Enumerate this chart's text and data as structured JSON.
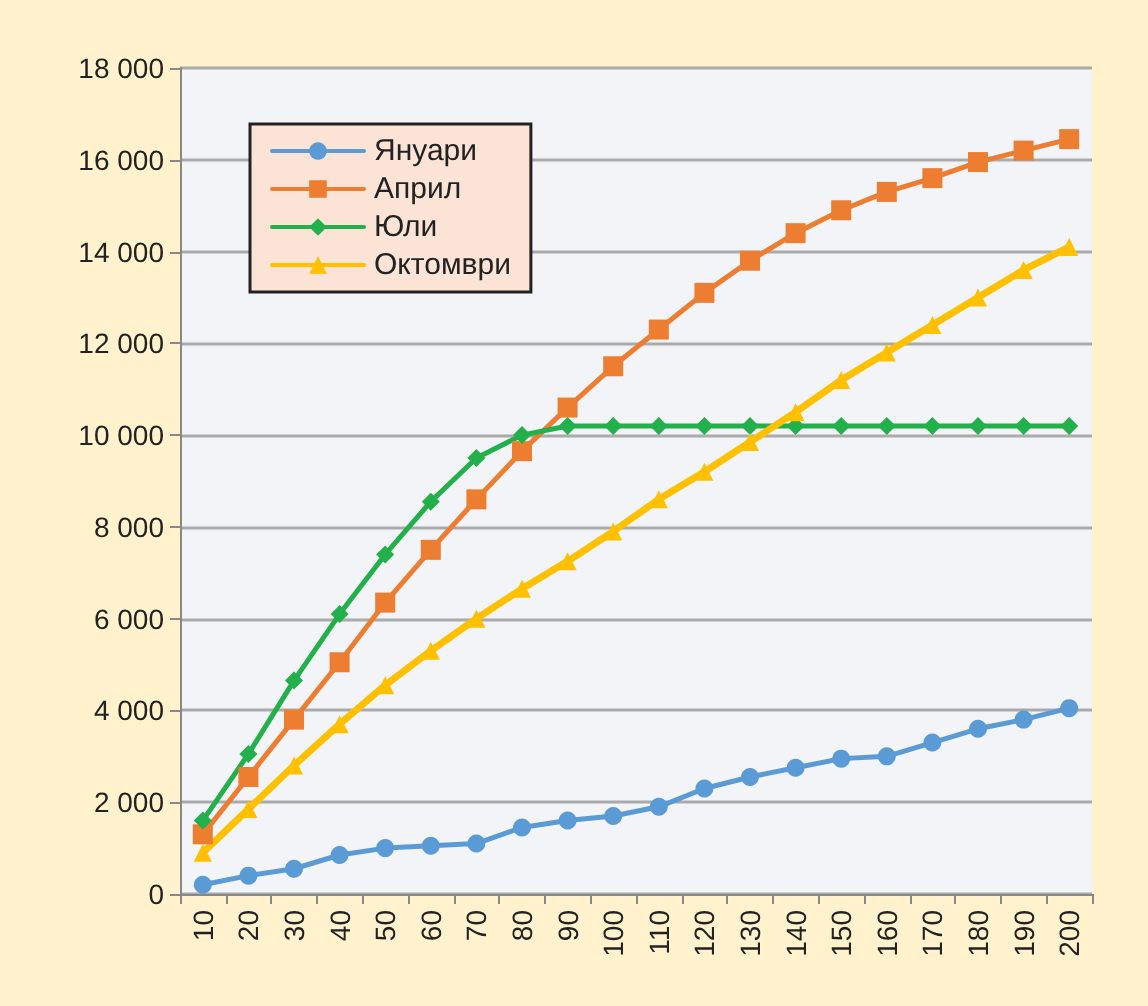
{
  "chart_data": {
    "type": "line",
    "categories": [
      "10",
      "20",
      "30",
      "40",
      "50",
      "60",
      "70",
      "80",
      "90",
      "100",
      "110",
      "120",
      "130",
      "140",
      "150",
      "160",
      "170",
      "180",
      "190",
      "200"
    ],
    "series": [
      {
        "name": "Януари",
        "color": "#5b9bd5",
        "marker": "circle",
        "values": [
          200,
          400,
          550,
          850,
          1000,
          1050,
          1100,
          1450,
          1600,
          1700,
          1900,
          2300,
          2550,
          2750,
          2950,
          3000,
          3300,
          3600,
          3800,
          4050
        ]
      },
      {
        "name": "Април",
        "color": "#ed7d31",
        "marker": "square",
        "values": [
          1300,
          2550,
          3800,
          5050,
          6350,
          7500,
          8600,
          9650,
          10600,
          11500,
          12300,
          13100,
          13800,
          14400,
          14900,
          15300,
          15600,
          15950,
          16200,
          16450
        ]
      },
      {
        "name": "Юли",
        "color": "#22b04b",
        "marker": "diamond",
        "values": [
          1600,
          3050,
          4650,
          6100,
          7400,
          8550,
          9500,
          10000,
          10200,
          10200,
          10200,
          10200,
          10200,
          10200,
          10200,
          10200,
          10200,
          10200,
          10200,
          10200
        ]
      },
      {
        "name": "Октомври",
        "color": "#ffc000",
        "marker": "triangle",
        "values": [
          900,
          1850,
          2800,
          3700,
          4550,
          5300,
          6000,
          6650,
          7250,
          7900,
          8600,
          9200,
          9850,
          10500,
          11200,
          11800,
          12400,
          13000,
          13600,
          14100
        ]
      }
    ],
    "ylim": [
      0,
      18000
    ],
    "yticks": [
      {
        "value": 0,
        "label": "0"
      },
      {
        "value": 2000,
        "label": "2 000"
      },
      {
        "value": 4000,
        "label": "4 000"
      },
      {
        "value": 6000,
        "label": "6 000"
      },
      {
        "value": 8000,
        "label": "8 000"
      },
      {
        "value": 10000,
        "label": "10 000"
      },
      {
        "value": 12000,
        "label": "12 000"
      },
      {
        "value": 14000,
        "label": "14 000"
      },
      {
        "value": 16000,
        "label": "16 000"
      },
      {
        "value": 18000,
        "label": "18 000"
      }
    ],
    "grid": "y",
    "legend": "top left",
    "line_style": "solid"
  }
}
